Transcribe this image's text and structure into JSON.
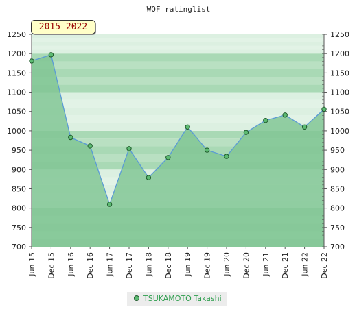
{
  "chart_data": {
    "type": "area",
    "title": "WOF ratinglist",
    "period_label": "2015–2022",
    "x": [
      "Jun 15",
      "Dec 15",
      "Jun 16",
      "Dec 16",
      "Jun 17",
      "Dec 17",
      "Jun 18",
      "Dec 18",
      "Jun 19",
      "Dec 19",
      "Jun 20",
      "Dec 20",
      "Jun 21",
      "Dec 21",
      "Jun 22",
      "Dec 22"
    ],
    "series": [
      {
        "name": "TSUKAMOTO Takashi",
        "values": [
          1181,
          1197,
          983,
          961,
          810,
          954,
          879,
          931,
          1010,
          950,
          934,
          996,
          1027,
          1041,
          1010,
          1056
        ]
      }
    ],
    "ylim": [
      700,
      1250
    ],
    "yticks": [
      700,
      750,
      800,
      850,
      900,
      950,
      1000,
      1050,
      1100,
      1150,
      1200,
      1250
    ],
    "axes": "y labels on both left and right",
    "grid": true,
    "legend_position": "bottom-center",
    "colors": {
      "line": "#5b9bd5",
      "fill": "#7fc592",
      "marker": "#5dbb73",
      "marker_edge": "#1e5a2a",
      "band_dark": "#a9d9b5",
      "band_light": "#dcf0e1"
    }
  }
}
